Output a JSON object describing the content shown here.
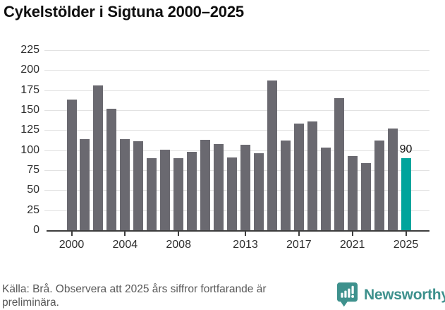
{
  "title": "Cykelstölder i Sigtuna 2000–2025",
  "footer": {
    "source_note": "Källa: Brå. Observera att 2025 års siffror fortfarande är preliminära."
  },
  "branding": {
    "name": "Newsworthy",
    "icon": "newsworthy-barchart-bubble-icon",
    "brand_color": "#3e918d"
  },
  "colors": {
    "bar_default": "#6a6970",
    "bar_highlight": "#00a49c",
    "gridline": "#e2e2e2",
    "axis": "#3d3d3d",
    "text_dark": "#2e2e2e",
    "footer_text": "#595959"
  },
  "chart_data": {
    "type": "bar",
    "title": "Cykelstölder i Sigtuna 2000–2025",
    "x": [
      2000,
      2001,
      2002,
      2003,
      2004,
      2005,
      2006,
      2007,
      2008,
      2009,
      2010,
      2011,
      2012,
      2013,
      2014,
      2015,
      2016,
      2017,
      2018,
      2019,
      2020,
      2021,
      2022,
      2023,
      2024,
      2025
    ],
    "values": [
      163,
      114,
      181,
      152,
      114,
      111,
      90,
      101,
      90,
      98,
      113,
      108,
      91,
      107,
      96,
      187,
      112,
      133,
      136,
      103,
      165,
      93,
      84,
      112,
      127,
      90
    ],
    "x_tick_years": [
      2000,
      2004,
      2008,
      2013,
      2017,
      2021,
      2025
    ],
    "y_ticks": [
      0,
      25,
      50,
      75,
      100,
      125,
      150,
      175,
      200,
      225
    ],
    "ylim": [
      0,
      225
    ],
    "grid": "horizontal",
    "legend": "none",
    "highlight": {
      "year": 2025,
      "value": 90,
      "label": "90"
    }
  }
}
